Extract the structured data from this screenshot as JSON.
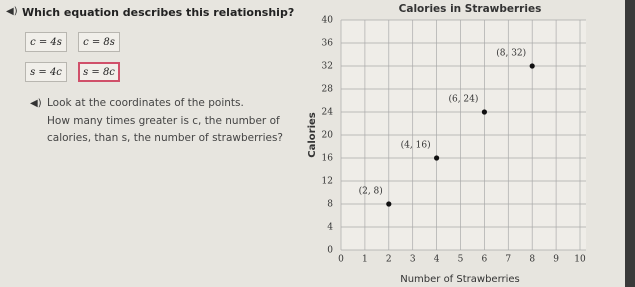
{
  "question": "Which equation describes this relationship?",
  "options": [
    "c = 4s",
    "c = 8s",
    "s = 4c",
    "s = 8c"
  ],
  "prompt": {
    "intro": "Look at the coordinates of the points.",
    "question": "How many times greater is c, the number of calories, than s, the number of strawberries?"
  },
  "chart_data": {
    "type": "scatter",
    "title": "Calories in Strawberries",
    "x_label": "Number of Strawberries",
    "y_label": "Calories",
    "x": [
      2,
      4,
      6,
      8
    ],
    "series": [
      {
        "name": "Calories",
        "color": "#111111",
        "values": [
          8,
          16,
          24,
          32
        ]
      }
    ],
    "value_labels": [
      "(2, 8)",
      "(4, 16)",
      "(6, 24)",
      "(8, 32)"
    ],
    "xlim": [
      0,
      10
    ],
    "xticks": [
      0,
      1,
      2,
      3,
      4,
      5,
      6,
      7,
      8,
      9,
      10
    ],
    "ylim": [
      0,
      40
    ],
    "yticks": [
      0,
      4,
      8,
      12,
      16,
      20,
      24,
      28,
      32,
      36,
      40
    ],
    "grid": true
  }
}
